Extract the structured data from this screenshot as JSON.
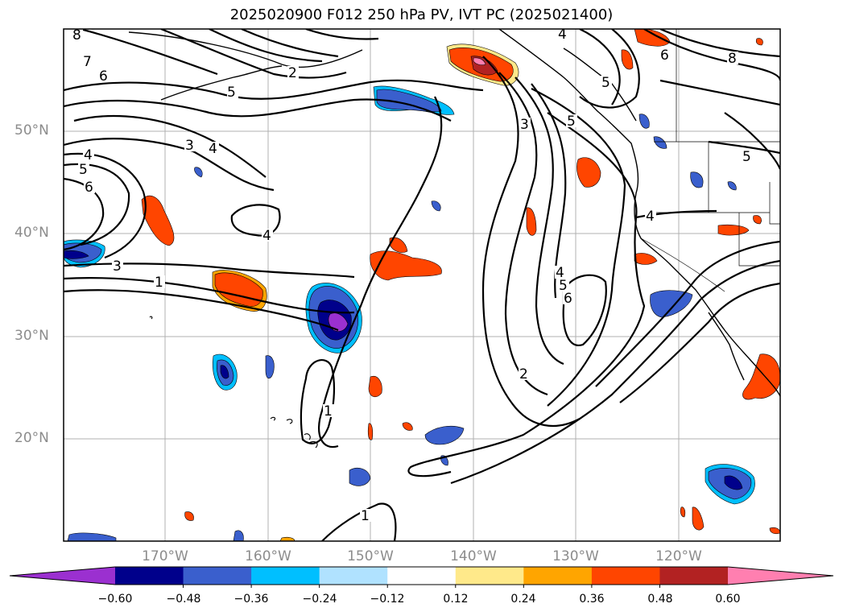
{
  "title": "2025020900 F012 250 hPa PV, IVT PC (2025021400)",
  "lat_labels": [
    "50°N",
    "40°N",
    "30°N",
    "20°N"
  ],
  "lon_labels": [
    "170°W",
    "160°W",
    "150°W",
    "140°W",
    "130°W",
    "120°W"
  ],
  "colorbar": {
    "ticks": [
      "−0.60",
      "−0.48",
      "−0.36",
      "−0.24",
      "−0.12",
      "0.12",
      "0.24",
      "0.36",
      "0.48",
      "0.60"
    ],
    "colors": [
      "#9b30d0",
      "#00008b",
      "#3a5fcd",
      "#00bfff",
      "#b0e2ff",
      "#ffffff",
      "#ffe98a",
      "#ffa500",
      "#ff4500",
      "#b22222",
      "#ff7fb0"
    ]
  },
  "contour_labels": {
    "l8a": "8",
    "l7": "7",
    "l6a": "6",
    "l5a": "5",
    "l2": "2",
    "l4a": "4",
    "l6b": "6",
    "l8b": "8",
    "l5b": "5",
    "l5c": "5",
    "l3a": "3",
    "l4b": "4",
    "l3b": "3",
    "l4c": "4",
    "l5d": "5",
    "l6c": "6",
    "l4d": "4",
    "l4e": "4",
    "l5e": "5",
    "l6d": "6",
    "l3c": "3",
    "l1a": "1",
    "l2b": "2",
    "l1b": "1",
    "l1c": "1",
    "l5f": "5"
  }
}
